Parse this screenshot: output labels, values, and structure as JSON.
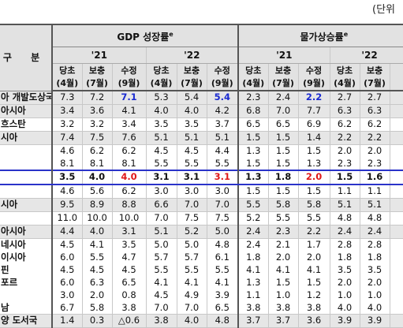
{
  "unit_label": "(단위",
  "header": {
    "gubun": "구 분",
    "gdp_title": "GDP 성장률",
    "gdp_mark": "e",
    "cpi_title": "물가상승률",
    "cpi_mark": "e",
    "year_21": "'21",
    "year_22": "'22",
    "sub": [
      "당초",
      "보충",
      "수정",
      "당초",
      "보충",
      "수정",
      "당초",
      "보충",
      "수정",
      "당초",
      "보충"
    ],
    "months": [
      "(4월)",
      "(7월)",
      "(9월)",
      "(4월)",
      "(7월)",
      "(9월)",
      "(4월)",
      "(7월)",
      "(9월)",
      "(4월)",
      "(7월)"
    ]
  },
  "rows": [
    {
      "label": "아 개발도상국",
      "type": "region",
      "values": [
        "7.3",
        "7.2",
        "7.1",
        "5.3",
        "5.4",
        "5.4",
        "2.3",
        "2.4",
        "2.2",
        "2.7",
        "2.7"
      ]
    },
    {
      "label": "아시아",
      "type": "region",
      "values": [
        "3.4",
        "3.6",
        "4.1",
        "4.0",
        "4.0",
        "4.2",
        "6.8",
        "7.0",
        "7.7",
        "6.3",
        "6.3"
      ]
    },
    {
      "label": "흐스탄",
      "type": "line",
      "values": [
        "3.2",
        "3.2",
        "3.4",
        "3.5",
        "3.5",
        "3.7",
        "6.5",
        "6.5",
        "6.9",
        "6.2",
        "6.2"
      ]
    },
    {
      "label": "시아",
      "type": "region",
      "values": [
        "7.4",
        "7.5",
        "7.6",
        "5.1",
        "5.1",
        "5.1",
        "1.5",
        "1.5",
        "1.4",
        "2.2",
        "2.2"
      ]
    },
    {
      "label": "",
      "type": "plain",
      "values": [
        "4.6",
        "6.2",
        "6.2",
        "4.5",
        "4.5",
        "4.4",
        "1.3",
        "1.5",
        "1.5",
        "2.0",
        "2.0"
      ]
    },
    {
      "label": "",
      "type": "plain",
      "values": [
        "8.1",
        "8.1",
        "8.1",
        "5.5",
        "5.5",
        "5.5",
        "1.5",
        "1.5",
        "1.3",
        "2.3",
        "2.3"
      ]
    },
    {
      "label": "",
      "type": "hl",
      "values": [
        "3.5",
        "4.0",
        "4.0",
        "3.1",
        "3.1",
        "3.1",
        "1.3",
        "1.8",
        "2.0",
        "1.5",
        "1.6"
      ]
    },
    {
      "label": "",
      "type": "line",
      "values": [
        "4.6",
        "5.6",
        "6.2",
        "3.0",
        "3.0",
        "3.0",
        "1.5",
        "1.5",
        "1.5",
        "1.1",
        "1.1"
      ]
    },
    {
      "label": "시아",
      "type": "region",
      "values": [
        "9.5",
        "8.9",
        "8.8",
        "6.6",
        "7.0",
        "7.0",
        "5.5",
        "5.8",
        "5.8",
        "5.1",
        "5.1"
      ]
    },
    {
      "label": "",
      "type": "line",
      "values": [
        "11.0",
        "10.0",
        "10.0",
        "7.0",
        "7.5",
        "7.5",
        "5.2",
        "5.5",
        "5.5",
        "4.8",
        "4.8"
      ]
    },
    {
      "label": "아시아",
      "type": "region",
      "values": [
        "4.4",
        "4.0",
        "3.1",
        "5.1",
        "5.2",
        "5.0",
        "2.4",
        "2.3",
        "2.2",
        "2.4",
        "2.4"
      ]
    },
    {
      "label": "네시아",
      "type": "plain",
      "values": [
        "4.5",
        "4.1",
        "3.5",
        "5.0",
        "5.0",
        "4.8",
        "2.4",
        "2.1",
        "1.7",
        "2.8",
        "2.8"
      ]
    },
    {
      "label": "이시아",
      "type": "plain",
      "values": [
        "6.0",
        "5.5",
        "4.7",
        "5.7",
        "5.7",
        "6.1",
        "1.8",
        "2.0",
        "2.0",
        "1.8",
        "1.8"
      ]
    },
    {
      "label": "핀",
      "type": "plain",
      "values": [
        "4.5",
        "4.5",
        "4.5",
        "5.5",
        "5.5",
        "5.5",
        "4.1",
        "4.1",
        "4.1",
        "3.5",
        "3.5"
      ]
    },
    {
      "label": "포르",
      "type": "plain",
      "values": [
        "6.0",
        "6.3",
        "6.5",
        "4.1",
        "4.1",
        "4.1",
        "1.3",
        "1.5",
        "1.5",
        "2.0",
        "2.0"
      ]
    },
    {
      "label": "",
      "type": "plain",
      "values": [
        "3.0",
        "2.0",
        "0.8",
        "4.5",
        "4.9",
        "3.9",
        "1.1",
        "1.0",
        "1.2",
        "1.0",
        "1.0"
      ]
    },
    {
      "label": "남",
      "type": "line",
      "values": [
        "6.7",
        "5.8",
        "3.8",
        "7.0",
        "7.0",
        "6.5",
        "3.8",
        "3.8",
        "3.8",
        "4.0",
        "4.0"
      ]
    },
    {
      "label": "양 도서국",
      "type": "region",
      "values": [
        "1.4",
        "0.3",
        "△0.6",
        "3.8",
        "4.0",
        "4.8",
        "3.7",
        "3.7",
        "3.6",
        "3.9",
        "3.9"
      ]
    }
  ],
  "colors": {
    "revised_highlight": "#1a2ad0",
    "korea_revised": "#e01818",
    "highlight_border": "#2a33c9"
  }
}
